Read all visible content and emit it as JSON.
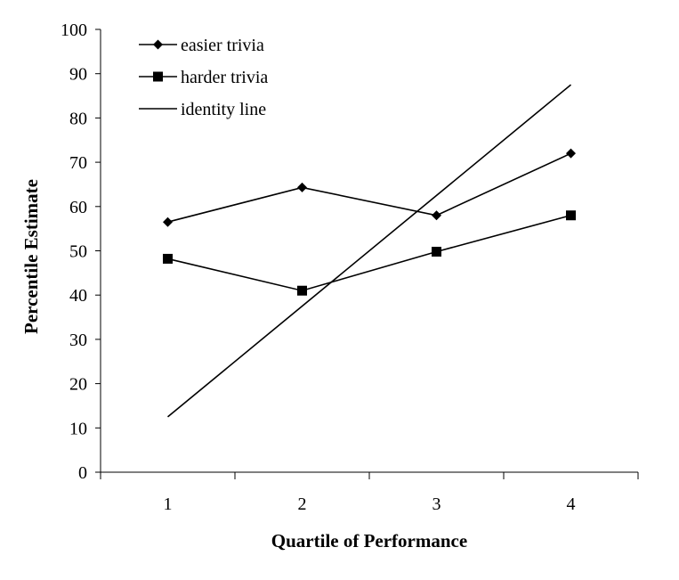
{
  "chart_data": {
    "type": "line",
    "xlabel": "Quartile of Performance",
    "ylabel": "Percentile Estimate",
    "categories": [
      "1",
      "2",
      "3",
      "4"
    ],
    "ylim": [
      0,
      100
    ],
    "yticks": [
      0,
      10,
      20,
      30,
      40,
      50,
      60,
      70,
      80,
      90,
      100
    ],
    "grid": false,
    "legend_position": "top-left",
    "series": [
      {
        "name": "easier trivia",
        "marker": "diamond",
        "color": "#000000",
        "x": [
          1,
          2,
          3,
          4
        ],
        "values": [
          56.5,
          64.3,
          58.0,
          72.0
        ]
      },
      {
        "name": "harder trivia",
        "marker": "square",
        "color": "#000000",
        "x": [
          1,
          2,
          3,
          4
        ],
        "values": [
          48.2,
          41.0,
          49.8,
          58.0
        ]
      },
      {
        "name": "identity line",
        "marker": "none",
        "color": "#000000",
        "x": [
          1,
          4
        ],
        "values": [
          12.5,
          87.5
        ]
      }
    ]
  }
}
